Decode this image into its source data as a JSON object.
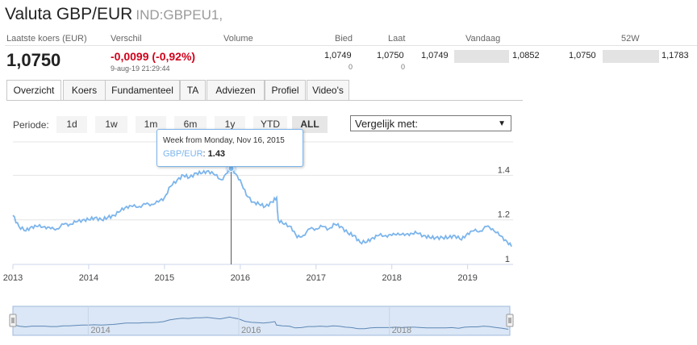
{
  "header": {
    "title": "Valuta GBP/EUR",
    "code": "IND:GBPEU1,"
  },
  "quote": {
    "labels": {
      "last": "Laatste koers (EUR)",
      "change": "Verschil",
      "volume": "Volume",
      "bid": "Bied",
      "ask": "Laat",
      "today": "Vandaag",
      "week52": "52W"
    },
    "last": "1,0750",
    "change": "-0,0099 (-0,92%)",
    "timestamp": "9-aug-19 21:29:44",
    "bid": "1,0749",
    "bid_size": "0",
    "ask": "1,0750",
    "ask_size": "0",
    "today_low": "1,0749",
    "today_high": "1,0852",
    "week52_low": "1,0750",
    "week52_high": "1,1783"
  },
  "tabs": [
    "Overzicht",
    "Koers",
    "Fundamenteel",
    "TA",
    "Adviezen",
    "Profiel",
    "Video's"
  ],
  "active_tab": 0,
  "periode": {
    "label": "Periode:",
    "buttons": [
      "1d",
      "1w",
      "1m",
      "6m",
      "1y",
      "YTD",
      "ALL"
    ],
    "active": 6
  },
  "compare": {
    "label": "Vergelijk met:",
    "arrow": "▼"
  },
  "tooltip": {
    "heading": "Week from Monday, Nov 16, 2015",
    "series": "GBP/EUR",
    "value": "1.43"
  },
  "chart_data": {
    "type": "line",
    "series_name": "GBP/EUR",
    "x_ticks": [
      "2013",
      "2014",
      "2015",
      "2016",
      "2017",
      "2018",
      "2019"
    ],
    "y_ticks": [
      "1",
      "1.2",
      "1.4"
    ],
    "ylim": [
      1.0,
      1.55
    ],
    "navigator_ticks": [
      "2014",
      "2016",
      "2018"
    ],
    "x": [
      2013.0,
      2013.08,
      2013.17,
      2013.25,
      2013.33,
      2013.42,
      2013.5,
      2013.58,
      2013.67,
      2013.75,
      2013.83,
      2013.92,
      2014.0,
      2014.08,
      2014.17,
      2014.25,
      2014.33,
      2014.42,
      2014.5,
      2014.58,
      2014.67,
      2014.75,
      2014.83,
      2014.92,
      2015.0,
      2015.08,
      2015.17,
      2015.25,
      2015.33,
      2015.42,
      2015.5,
      2015.58,
      2015.67,
      2015.75,
      2015.83,
      2015.88,
      2015.92,
      2016.0,
      2016.08,
      2016.17,
      2016.25,
      2016.33,
      2016.42,
      2016.48,
      2016.5,
      2016.58,
      2016.67,
      2016.75,
      2016.83,
      2016.92,
      2017.0,
      2017.08,
      2017.17,
      2017.25,
      2017.33,
      2017.42,
      2017.5,
      2017.58,
      2017.67,
      2017.75,
      2017.83,
      2017.92,
      2018.0,
      2018.08,
      2018.17,
      2018.25,
      2018.33,
      2018.42,
      2018.5,
      2018.58,
      2018.67,
      2018.75,
      2018.83,
      2018.92,
      2019.0,
      2019.08,
      2019.17,
      2019.25,
      2019.33,
      2019.42,
      2019.5,
      2019.58
    ],
    "values": [
      1.22,
      1.17,
      1.15,
      1.17,
      1.17,
      1.17,
      1.16,
      1.16,
      1.18,
      1.18,
      1.19,
      1.2,
      1.2,
      1.21,
      1.2,
      1.21,
      1.22,
      1.24,
      1.26,
      1.26,
      1.26,
      1.27,
      1.27,
      1.28,
      1.3,
      1.35,
      1.38,
      1.4,
      1.39,
      1.41,
      1.41,
      1.42,
      1.4,
      1.38,
      1.41,
      1.43,
      1.41,
      1.38,
      1.31,
      1.28,
      1.27,
      1.26,
      1.28,
      1.3,
      1.2,
      1.18,
      1.17,
      1.12,
      1.13,
      1.16,
      1.16,
      1.17,
      1.16,
      1.18,
      1.17,
      1.14,
      1.13,
      1.1,
      1.1,
      1.12,
      1.13,
      1.13,
      1.13,
      1.14,
      1.13,
      1.14,
      1.14,
      1.13,
      1.12,
      1.12,
      1.12,
      1.12,
      1.13,
      1.11,
      1.14,
      1.15,
      1.15,
      1.17,
      1.16,
      1.13,
      1.11,
      1.08
    ]
  }
}
